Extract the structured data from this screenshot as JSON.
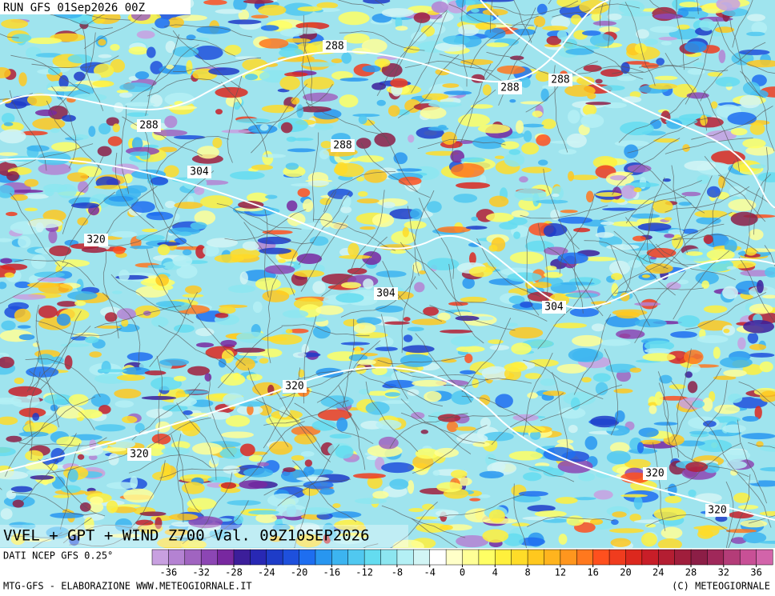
{
  "header": {
    "run": "RUN GFS 01Sep2026 00Z"
  },
  "map": {
    "contour_labels": [
      288,
      288,
      288,
      288,
      288,
      304,
      304,
      304,
      320,
      320,
      320,
      320,
      320
    ]
  },
  "footer": {
    "title": "VVEL + GPT + WIND Z700 Val. 09Z10SEP2026",
    "source": "DATI NCEP GFS 0.25°",
    "credit_left": "MTG-GFS - ELABORAZIONE WWW.METEOGIORNALE.IT",
    "credit_right": "(C) METEOGIORNALE"
  },
  "scale": {
    "range": [
      -38,
      38
    ],
    "ticks": [
      -36,
      -32,
      -28,
      -24,
      -20,
      -16,
      -12,
      -8,
      -4,
      0,
      4,
      8,
      12,
      16,
      20,
      24,
      28,
      32,
      36
    ],
    "colors": [
      "#c8a0e0",
      "#b482d2",
      "#a064c0",
      "#8c46b4",
      "#7828a0",
      "#3c1e9a",
      "#2828b4",
      "#1e3cc8",
      "#1e50dc",
      "#1e6ef0",
      "#2896f0",
      "#3cb4f0",
      "#50c8f0",
      "#64dcf0",
      "#8ce6f0",
      "#b4f0f5",
      "#d2f5f5",
      "#ffffff",
      "#ffffc8",
      "#ffff96",
      "#ffff64",
      "#fff03c",
      "#ffdc28",
      "#ffc81e",
      "#ffb41e",
      "#ff961e",
      "#ff781e",
      "#ff501e",
      "#f03c1e",
      "#dc281e",
      "#c81e28",
      "#b41e32",
      "#a01e3c",
      "#8c1e46",
      "#a0285a",
      "#b43c78",
      "#c85096",
      "#d264aa"
    ]
  }
}
